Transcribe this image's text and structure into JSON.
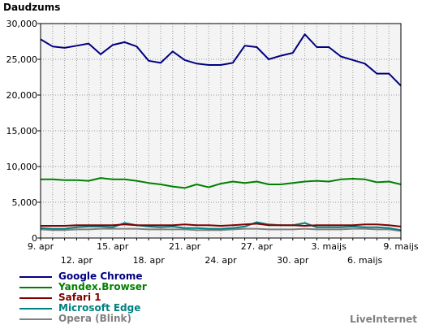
{
  "chart_data": {
    "type": "line",
    "ylabel": "Daudzums",
    "ylim": [
      0,
      30000
    ],
    "yticks": [
      0,
      5000,
      10000,
      15000,
      20000,
      25000,
      30000
    ],
    "ytick_labels": [
      "0",
      "5,000",
      "10,000",
      "15,000",
      "20,000",
      "25,000",
      "30,000"
    ],
    "x": [
      "9. apr",
      "10. apr",
      "11. apr",
      "12. apr",
      "13. apr",
      "14. apr",
      "15. apr",
      "16. apr",
      "17. apr",
      "18. apr",
      "19. apr",
      "20. apr",
      "21. apr",
      "22. apr",
      "23. apr",
      "24. apr",
      "25. apr",
      "26. apr",
      "27. apr",
      "28. apr",
      "29. apr",
      "30. apr",
      "1. maijs",
      "2. maijs",
      "3. maijs",
      "4. maijs",
      "5. maijs",
      "6. maijs",
      "7. maijs",
      "8. maijs",
      "9. maijs"
    ],
    "xtick_labels_upper": [
      {
        "index": 0,
        "label": "9. apr"
      },
      {
        "index": 6,
        "label": "15. apr"
      },
      {
        "index": 12,
        "label": "21. apr"
      },
      {
        "index": 18,
        "label": "27. apr"
      },
      {
        "index": 24,
        "label": "3. maijs"
      },
      {
        "index": 30,
        "label": "9. maijs"
      }
    ],
    "xtick_labels_lower": [
      {
        "index": 3,
        "label": "12. apr"
      },
      {
        "index": 9,
        "label": "18. apr"
      },
      {
        "index": 15,
        "label": "24. apr"
      },
      {
        "index": 21,
        "label": "30. apr"
      },
      {
        "index": 27,
        "label": "6. maijs"
      }
    ],
    "grid": true,
    "legend_position": "bottom-left",
    "series": [
      {
        "name": "Google Chrome",
        "color": "#000080",
        "values": [
          27800,
          26800,
          26600,
          26900,
          27200,
          25700,
          27000,
          27400,
          26800,
          24800,
          24500,
          26100,
          24900,
          24400,
          24200,
          24200,
          24500,
          26900,
          26700,
          25000,
          25500,
          25900,
          28500,
          26700,
          26700,
          25400,
          24900,
          24400,
          23000,
          23000,
          21300
        ]
      },
      {
        "name": "Yandex.Browser",
        "color": "#008000",
        "values": [
          8200,
          8200,
          8100,
          8100,
          8000,
          8400,
          8200,
          8200,
          8000,
          7700,
          7500,
          7200,
          7000,
          7500,
          7100,
          7600,
          7900,
          7700,
          7900,
          7500,
          7500,
          7700,
          7900,
          8000,
          7900,
          8200,
          8300,
          8200,
          7800,
          7900,
          7500
        ]
      },
      {
        "name": "Safari 1",
        "color": "#800000",
        "values": [
          1700,
          1700,
          1700,
          1800,
          1800,
          1800,
          1800,
          1900,
          1800,
          1800,
          1800,
          1800,
          1900,
          1800,
          1800,
          1700,
          1800,
          1900,
          2000,
          1800,
          1800,
          1800,
          1700,
          1800,
          1800,
          1800,
          1800,
          1900,
          1900,
          1800,
          1600
        ]
      },
      {
        "name": "Microsoft Edge",
        "color": "#008080",
        "values": [
          1400,
          1300,
          1300,
          1500,
          1600,
          1600,
          1500,
          2100,
          1800,
          1600,
          1500,
          1600,
          1400,
          1400,
          1300,
          1300,
          1400,
          1600,
          2200,
          1900,
          1800,
          1800,
          2100,
          1500,
          1500,
          1500,
          1600,
          1500,
          1500,
          1400,
          1100
        ]
      },
      {
        "name": "Opera (Blink)",
        "color": "#808080",
        "values": [
          1200,
          1100,
          1100,
          1200,
          1200,
          1300,
          1300,
          1300,
          1300,
          1200,
          1200,
          1200,
          1200,
          1100,
          1100,
          1100,
          1200,
          1300,
          1300,
          1200,
          1200,
          1200,
          1300,
          1200,
          1200,
          1200,
          1300,
          1300,
          1200,
          1200,
          1000
        ]
      }
    ]
  },
  "source_label": "LiveInternet"
}
